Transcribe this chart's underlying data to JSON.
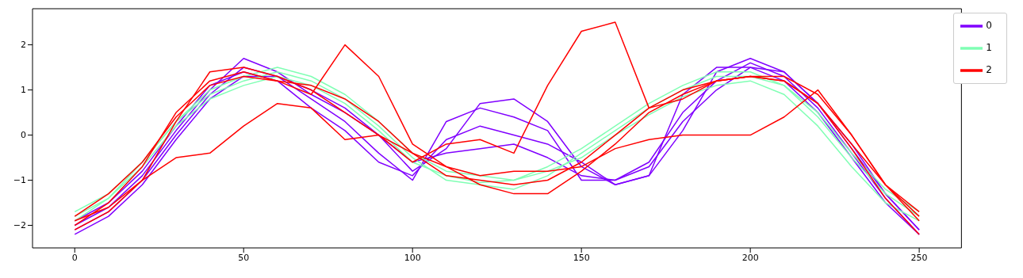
{
  "chart_data": {
    "type": "line",
    "x": [
      0,
      10,
      20,
      30,
      40,
      50,
      60,
      70,
      80,
      90,
      100,
      110,
      120,
      130,
      140,
      150,
      160,
      170,
      180,
      190,
      200,
      210,
      220,
      230,
      240,
      250
    ],
    "series": [
      {
        "name": "0",
        "color": "#8000ff",
        "values": [
          -2.1,
          -1.7,
          -1.0,
          0.0,
          0.9,
          1.5,
          1.3,
          0.8,
          0.3,
          -0.4,
          -1.0,
          0.3,
          0.6,
          0.4,
          0.1,
          -1.0,
          -1.0,
          -0.6,
          0.5,
          1.2,
          1.6,
          1.3,
          0.6,
          -0.4,
          -1.4,
          -2.2
        ]
      },
      {
        "color": "#8000ff",
        "values": [
          -2.0,
          -1.6,
          -0.9,
          0.1,
          1.0,
          1.7,
          1.4,
          0.9,
          0.5,
          0.0,
          -0.8,
          -0.3,
          0.7,
          0.8,
          0.3,
          -0.7,
          -1.1,
          -0.9,
          0.1,
          1.4,
          1.7,
          1.4,
          0.7,
          -0.3,
          -1.3,
          -2.1
        ]
      },
      {
        "color": "#8000ff",
        "values": [
          -2.2,
          -1.8,
          -1.1,
          -0.1,
          0.8,
          1.3,
          1.3,
          1.0,
          0.6,
          0.0,
          -0.6,
          -0.4,
          -0.3,
          -0.2,
          -0.5,
          -0.9,
          -1.0,
          -0.7,
          0.3,
          1.0,
          1.5,
          1.4,
          0.7,
          -0.2,
          -1.3,
          -2.1
        ]
      },
      {
        "color": "#8000ff",
        "values": [
          -1.9,
          -1.5,
          -0.8,
          0.2,
          1.1,
          1.4,
          1.2,
          0.6,
          0.1,
          -0.6,
          -0.9,
          -0.1,
          0.2,
          0.0,
          -0.2,
          -0.6,
          -1.1,
          -0.9,
          0.9,
          1.5,
          1.5,
          1.2,
          0.5,
          -0.5,
          -1.5,
          -2.2
        ]
      },
      {
        "name": "1",
        "color": "#80ffb4",
        "values": [
          -1.7,
          -1.3,
          -0.6,
          0.3,
          0.9,
          1.2,
          1.4,
          1.2,
          0.8,
          0.2,
          -0.5,
          -1.0,
          -1.1,
          -1.2,
          -0.9,
          -0.4,
          0.1,
          0.6,
          1.0,
          1.3,
          1.3,
          1.1,
          0.5,
          -0.4,
          -1.2,
          -1.7
        ]
      },
      {
        "color": "#80ffb4",
        "values": [
          -1.9,
          -1.4,
          -0.7,
          0.2,
          0.8,
          1.1,
          1.3,
          1.1,
          0.7,
          0.1,
          -0.6,
          -0.9,
          -1.05,
          -1.0,
          -0.8,
          -0.5,
          0.0,
          0.45,
          0.85,
          1.1,
          1.2,
          0.9,
          0.2,
          -0.7,
          -1.5,
          -1.9
        ]
      },
      {
        "color": "#80ffb4",
        "values": [
          -1.8,
          -1.4,
          -0.6,
          0.3,
          1.0,
          1.3,
          1.5,
          1.3,
          0.9,
          0.3,
          -0.4,
          -0.8,
          -0.9,
          -1.0,
          -0.7,
          -0.3,
          0.2,
          0.7,
          1.1,
          1.4,
          1.4,
          1.1,
          0.4,
          -0.5,
          -1.3,
          -1.8
        ]
      },
      {
        "name": "2",
        "color": "#ff0000",
        "values": [
          -1.8,
          -1.3,
          -0.6,
          0.4,
          1.1,
          1.3,
          1.2,
          1.1,
          0.8,
          0.3,
          -0.4,
          -0.9,
          -1.0,
          -1.1,
          -1.0,
          -0.6,
          0.0,
          0.6,
          1.0,
          1.2,
          1.3,
          1.2,
          0.7,
          -0.2,
          -1.1,
          -1.7
        ]
      },
      {
        "color": "#ff0000",
        "values": [
          -2.0,
          -1.5,
          -0.7,
          0.5,
          1.2,
          1.4,
          1.2,
          0.9,
          2.0,
          1.3,
          -0.2,
          -0.7,
          -1.1,
          -1.3,
          -1.3,
          -0.8,
          -0.2,
          0.5,
          0.9,
          1.2,
          1.3,
          1.3,
          0.9,
          0.0,
          -1.1,
          -1.9
        ]
      },
      {
        "color": "#ff0000",
        "values": [
          -2.1,
          -1.7,
          -1.0,
          0.3,
          1.4,
          1.5,
          1.3,
          1.0,
          0.5,
          0.0,
          -0.6,
          -0.2,
          -0.1,
          -0.4,
          1.1,
          2.3,
          2.5,
          0.6,
          0.8,
          1.2,
          1.3,
          1.2,
          0.7,
          -0.3,
          -1.4,
          -2.2
        ]
      },
      {
        "color": "#ff0000",
        "values": [
          -1.9,
          -1.6,
          -1.0,
          -0.5,
          -0.4,
          0.2,
          0.7,
          0.6,
          -0.1,
          0.0,
          -0.4,
          -0.7,
          -0.9,
          -0.8,
          -0.8,
          -0.7,
          -0.3,
          -0.1,
          0.0,
          0.0,
          0.0,
          0.4,
          1.0,
          0.0,
          -1.1,
          -1.8
        ]
      }
    ],
    "xlim": [
      -12.5,
      262.5
    ],
    "ylim": [
      -2.5,
      2.8
    ],
    "xticks": [
      0,
      50,
      100,
      150,
      200,
      250
    ],
    "yticks": [
      -2,
      -1,
      0,
      1,
      2
    ],
    "legend": "top right",
    "grid": false,
    "marker": "none",
    "line_style": "solid"
  }
}
